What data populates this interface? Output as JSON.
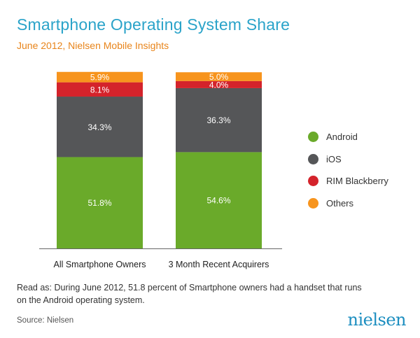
{
  "header": {
    "title": "Smartphone Operating System Share",
    "subtitle": "June 2012, Nielsen Mobile Insights"
  },
  "chart_data": {
    "type": "bar",
    "stacked": true,
    "orientation": "vertical",
    "title": "Smartphone Operating System Share",
    "subtitle": "June 2012, Nielsen Mobile Insights",
    "categories": [
      "All Smartphone Owners",
      "3 Month Recent Acquirers"
    ],
    "ylim": [
      0,
      100
    ],
    "grid": false,
    "legend_position": "right",
    "series": [
      {
        "name": "Android",
        "color": "#6aaa2a",
        "values": [
          51.8,
          54.6
        ],
        "labels": [
          "51.8%",
          "54.6%"
        ]
      },
      {
        "name": "iOS",
        "color": "#555658",
        "values": [
          34.3,
          36.3
        ],
        "labels": [
          "34.3%",
          "36.3%"
        ]
      },
      {
        "name": "RIM Blackberry",
        "color": "#d4232b",
        "values": [
          8.1,
          4.0
        ],
        "labels": [
          "8.1%",
          "4.0%"
        ]
      },
      {
        "name": "Others",
        "color": "#f7941d",
        "values": [
          5.9,
          5.0
        ],
        "labels": [
          "5.9%",
          "5.0%"
        ]
      }
    ]
  },
  "note": "Read as: During June 2012, 51.8 percent of Smartphone owners had a handset that runs on the Android operating system.",
  "source": "Source: Nielsen",
  "logo_text": "nielsen"
}
